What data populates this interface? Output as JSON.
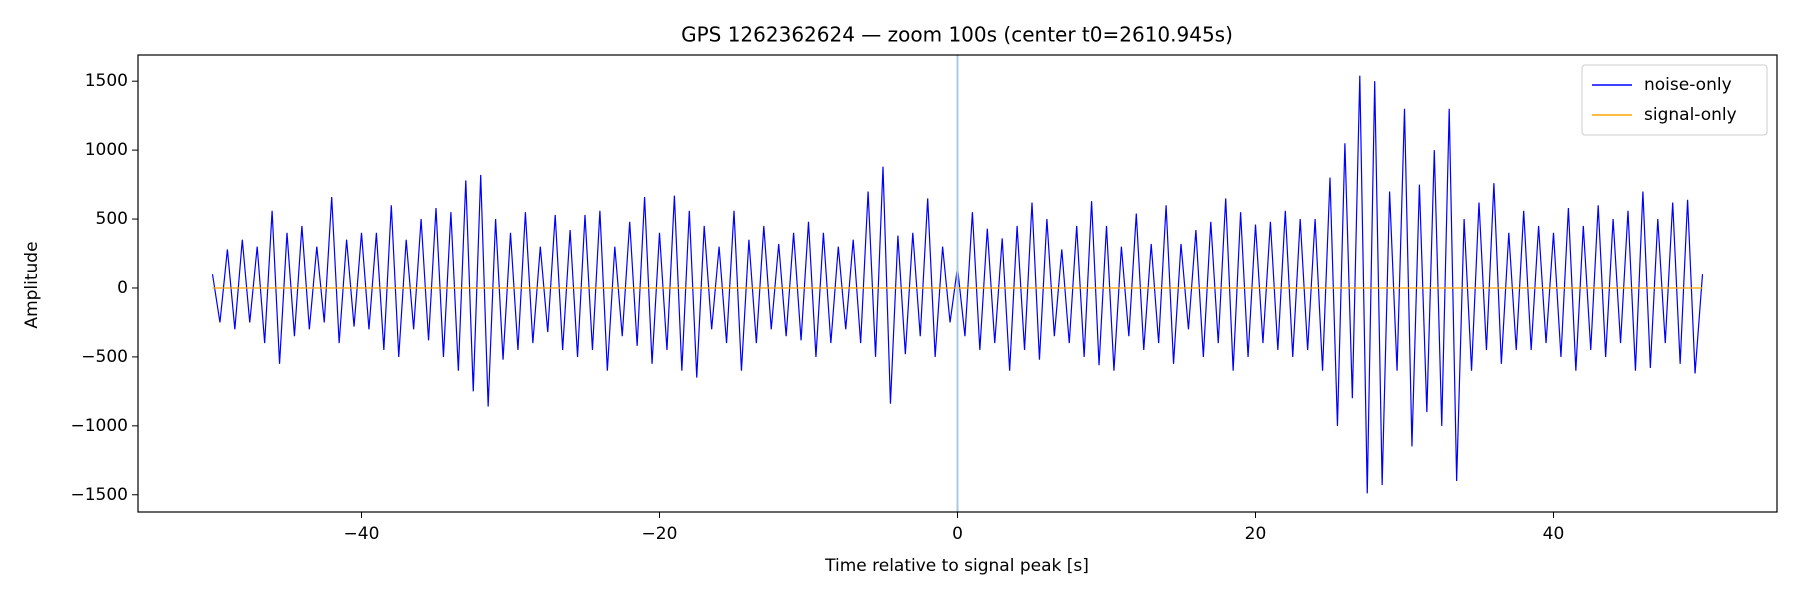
{
  "chart_data": {
    "type": "line",
    "title": "GPS 1262362624 — zoom 100s (center t0=2610.945s)",
    "xlabel": "Time relative to signal peak [s]",
    "ylabel": "Amplitude",
    "xlim": [
      -55,
      55
    ],
    "ylim": [
      -1625,
      1690
    ],
    "xticks": [
      {
        "value": -40,
        "label": "−40"
      },
      {
        "value": -20,
        "label": "−20"
      },
      0,
      20,
      40
    ],
    "yticks": [
      {
        "value": -1500,
        "label": "−1500"
      },
      {
        "value": -1000,
        "label": "−1000"
      },
      {
        "value": -500,
        "label": "−500"
      },
      0,
      500,
      1000,
      1500
    ],
    "grid": false,
    "legend": "upper right",
    "vline": {
      "x": 0,
      "color": "#a8c8e2"
    },
    "series": [
      {
        "name": "noise-only",
        "color": "#0000ff",
        "x": [
          -50,
          -49.5,
          -49,
          -48.5,
          -48,
          -47.5,
          -47,
          -46.5,
          -46,
          -45.5,
          -45,
          -44.5,
          -44,
          -43.5,
          -43,
          -42.5,
          -42,
          -41.5,
          -41,
          -40.5,
          -40,
          -39.5,
          -39,
          -38.5,
          -38,
          -37.5,
          -37,
          -36.5,
          -36,
          -35.5,
          -35,
          -34.5,
          -34,
          -33.5,
          -33,
          -32.5,
          -32,
          -31.5,
          -31,
          -30.5,
          -30,
          -29.5,
          -29,
          -28.5,
          -28,
          -27.5,
          -27,
          -26.5,
          -26,
          -25.5,
          -25,
          -24.5,
          -24,
          -23.5,
          -23,
          -22.5,
          -22,
          -21.5,
          -21,
          -20.5,
          -20,
          -19.5,
          -19,
          -18.5,
          -18,
          -17.5,
          -17,
          -16.5,
          -16,
          -15.5,
          -15,
          -14.5,
          -14,
          -13.5,
          -13,
          -12.5,
          -12,
          -11.5,
          -11,
          -10.5,
          -10,
          -9.5,
          -9,
          -8.5,
          -8,
          -7.5,
          -7,
          -6.5,
          -6,
          -5.5,
          -5,
          -4.5,
          -4,
          -3.5,
          -3,
          -2.5,
          -2,
          -1.5,
          -1,
          -0.5,
          0,
          0.5,
          1,
          1.5,
          2,
          2.5,
          3,
          3.5,
          4,
          4.5,
          5,
          5.5,
          6,
          6.5,
          7,
          7.5,
          8,
          8.5,
          9,
          9.5,
          10,
          10.5,
          11,
          11.5,
          12,
          12.5,
          13,
          13.5,
          14,
          14.5,
          15,
          15.5,
          16,
          16.5,
          17,
          17.5,
          18,
          18.5,
          19,
          19.5,
          20,
          20.5,
          21,
          21.5,
          22,
          22.5,
          23,
          23.5,
          24,
          24.5,
          25,
          25.5,
          26,
          26.5,
          27,
          27.5,
          28,
          28.5,
          29,
          29.5,
          30,
          30.5,
          31,
          31.5,
          32,
          32.5,
          33,
          33.5,
          34,
          34.5,
          35,
          35.5,
          36,
          36.5,
          37,
          37.5,
          38,
          38.5,
          39,
          39.5,
          40,
          40.5,
          41,
          41.5,
          42,
          42.5,
          43,
          43.5,
          44,
          44.5,
          45,
          45.5,
          46,
          46.5,
          47,
          47.5,
          48,
          48.5,
          49,
          49.5,
          50
        ],
        "values": [
          100,
          -250,
          280,
          -300,
          350,
          -250,
          300,
          -400,
          560,
          -550,
          400,
          -350,
          450,
          -300,
          300,
          -250,
          660,
          -400,
          350,
          -280,
          400,
          -300,
          400,
          -450,
          600,
          -500,
          350,
          -300,
          500,
          -380,
          580,
          -500,
          550,
          -600,
          780,
          -750,
          820,
          -860,
          500,
          -520,
          400,
          -450,
          550,
          -400,
          300,
          -320,
          530,
          -450,
          420,
          -500,
          530,
          -450,
          560,
          -600,
          300,
          -350,
          480,
          -420,
          660,
          -550,
          400,
          -450,
          670,
          -600,
          560,
          -650,
          450,
          -300,
          300,
          -400,
          560,
          -600,
          350,
          -400,
          450,
          -300,
          320,
          -350,
          400,
          -380,
          480,
          -500,
          400,
          -400,
          300,
          -300,
          350,
          -400,
          700,
          -500,
          880,
          -840,
          380,
          -480,
          400,
          -350,
          650,
          -500,
          300,
          -250,
          150,
          -350,
          550,
          -450,
          430,
          -400,
          360,
          -600,
          450,
          -450,
          620,
          -520,
          500,
          -350,
          280,
          -400,
          450,
          -500,
          630,
          -560,
          450,
          -600,
          300,
          -350,
          540,
          -450,
          320,
          -400,
          600,
          -550,
          320,
          -300,
          420,
          -500,
          480,
          -400,
          650,
          -600,
          550,
          -500,
          460,
          -400,
          480,
          -450,
          560,
          -500,
          500,
          -450,
          500,
          -600,
          800,
          -1000,
          1050,
          -800,
          1540,
          -1490,
          1500,
          -1430,
          700,
          -600,
          1300,
          -1150,
          750,
          -900,
          1000,
          -1000,
          1300,
          -1400,
          500,
          -600,
          620,
          -450,
          760,
          -550,
          400,
          -450,
          560,
          -450,
          450,
          -400,
          400,
          -500,
          580,
          -600,
          450,
          -450,
          600,
          -500,
          500,
          -400,
          560,
          -600,
          700,
          -580,
          500,
          -400,
          620,
          -550,
          640,
          -620,
          100
        ]
      },
      {
        "name": "signal-only",
        "color": "#ffa500",
        "x": [
          -50,
          50
        ],
        "values": [
          0,
          0
        ]
      }
    ]
  }
}
